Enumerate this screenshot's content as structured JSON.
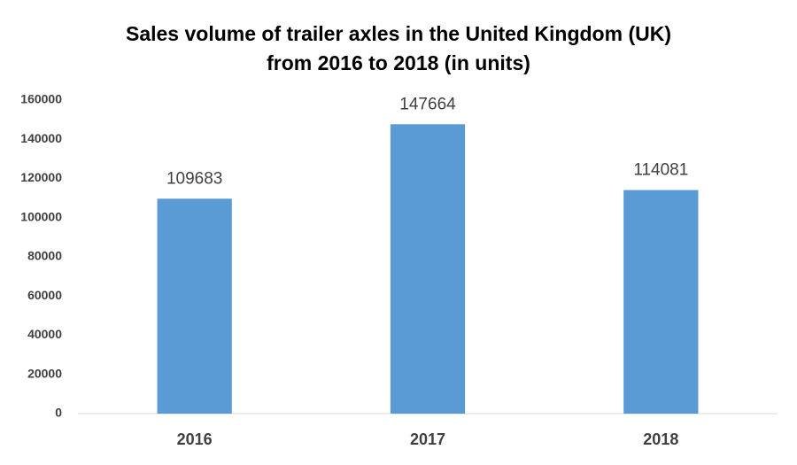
{
  "chart_data": {
    "type": "bar",
    "title": [
      "Sales volume of trailer axles in the United Kingdom (UK)",
      "from 2016 to 2018 (in units)"
    ],
    "categories": [
      "2016",
      "2017",
      "2018"
    ],
    "values": [
      109683,
      147664,
      114081
    ],
    "color": "#5b9bd5",
    "ylim": [
      0,
      160000
    ],
    "yticks": [
      0,
      20000,
      40000,
      60000,
      80000,
      100000,
      120000,
      140000,
      160000
    ],
    "grid": false
  }
}
